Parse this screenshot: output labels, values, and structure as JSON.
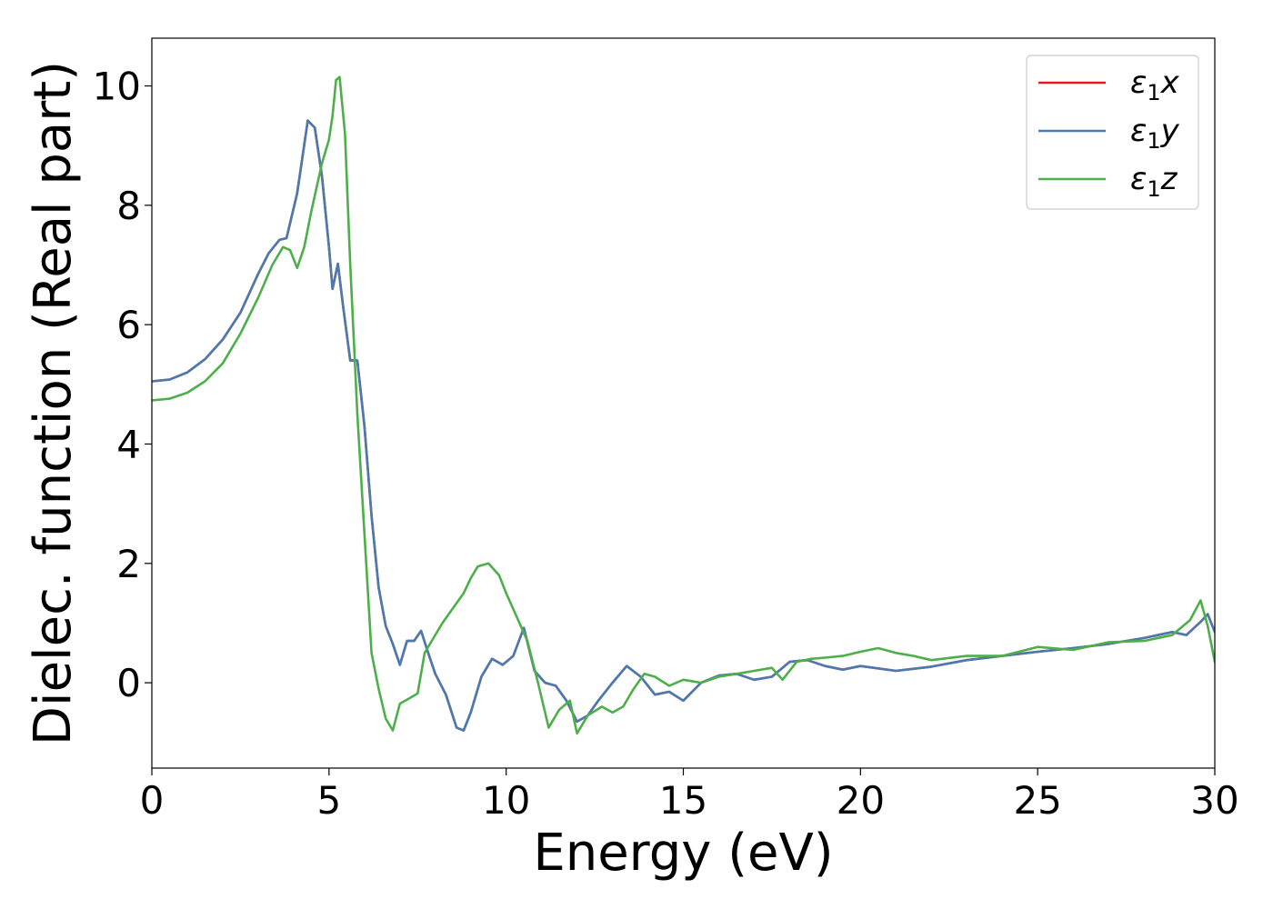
{
  "chart_data": {
    "type": "line",
    "xlabel": "Energy (eV)",
    "ylabel": "Dielec. function (Real part)",
    "xlim": [
      0,
      30
    ],
    "ylim": [
      -1.43,
      10.8
    ],
    "xticks": [
      "0",
      "5",
      "10",
      "15",
      "20",
      "25",
      "30"
    ],
    "yticks": [
      "0",
      "2",
      "4",
      "6",
      "8",
      "10"
    ],
    "grid": false,
    "legend_position": "top-right",
    "series": [
      {
        "name": "ε₁x",
        "legend_main": "ε",
        "legend_sub": "1",
        "legend_suffix": "x",
        "color": "#e41a1c",
        "x": [
          0,
          0.5,
          1,
          1.5,
          2,
          2.5,
          3,
          3.3,
          3.6,
          3.8,
          4.1,
          4.4,
          4.6,
          4.8,
          5.0,
          5.1,
          5.25,
          5.4,
          5.6,
          5.8,
          6.0,
          6.2,
          6.4,
          6.6,
          6.8,
          7.0,
          7.2,
          7.4,
          7.6,
          7.8,
          8.0,
          8.3,
          8.6,
          8.8,
          9.0,
          9.3,
          9.6,
          9.9,
          10.2,
          10.5,
          10.8,
          11.1,
          11.4,
          11.7,
          12.0,
          12.3,
          12.6,
          13.0,
          13.4,
          13.8,
          14.2,
          14.6,
          15.0,
          15.5,
          16.0,
          16.5,
          17.0,
          17.5,
          18.0,
          18.5,
          19.0,
          19.5,
          20.0,
          21.0,
          22.0,
          23.0,
          24.0,
          25.0,
          26.0,
          27.0,
          28.0,
          28.8,
          29.2,
          29.6,
          29.8,
          30.0
        ],
        "y": [
          5.05,
          5.08,
          5.2,
          5.42,
          5.75,
          6.2,
          6.85,
          7.2,
          7.42,
          7.45,
          8.2,
          9.42,
          9.3,
          8.5,
          7.3,
          6.6,
          7.02,
          6.3,
          5.4,
          5.4,
          4.3,
          2.8,
          1.6,
          0.95,
          0.65,
          0.3,
          0.7,
          0.7,
          0.87,
          0.5,
          0.15,
          -0.2,
          -0.75,
          -0.8,
          -0.5,
          0.1,
          0.4,
          0.3,
          0.45,
          0.92,
          0.2,
          0.0,
          -0.05,
          -0.3,
          -0.65,
          -0.55,
          -0.3,
          0.0,
          0.28,
          0.1,
          -0.2,
          -0.15,
          -0.3,
          0.0,
          0.12,
          0.15,
          0.05,
          0.1,
          0.35,
          0.38,
          0.28,
          0.22,
          0.28,
          0.2,
          0.27,
          0.38,
          0.45,
          0.52,
          0.58,
          0.65,
          0.75,
          0.85,
          0.8,
          1.02,
          1.15,
          0.85
        ]
      },
      {
        "name": "ε₁y",
        "legend_main": "ε",
        "legend_sub": "1",
        "legend_suffix": "y",
        "color": "#4a7bb0",
        "x": [
          0,
          0.5,
          1,
          1.5,
          2,
          2.5,
          3,
          3.3,
          3.6,
          3.8,
          4.1,
          4.4,
          4.6,
          4.8,
          5.0,
          5.1,
          5.25,
          5.4,
          5.6,
          5.8,
          6.0,
          6.2,
          6.4,
          6.6,
          6.8,
          7.0,
          7.2,
          7.4,
          7.6,
          7.8,
          8.0,
          8.3,
          8.6,
          8.8,
          9.0,
          9.3,
          9.6,
          9.9,
          10.2,
          10.5,
          10.8,
          11.1,
          11.4,
          11.7,
          12.0,
          12.3,
          12.6,
          13.0,
          13.4,
          13.8,
          14.2,
          14.6,
          15.0,
          15.5,
          16.0,
          16.5,
          17.0,
          17.5,
          18.0,
          18.5,
          19.0,
          19.5,
          20.0,
          21.0,
          22.0,
          23.0,
          24.0,
          25.0,
          26.0,
          27.0,
          28.0,
          28.8,
          29.2,
          29.6,
          29.8,
          30.0
        ],
        "y": [
          5.05,
          5.08,
          5.2,
          5.42,
          5.75,
          6.2,
          6.85,
          7.2,
          7.42,
          7.45,
          8.2,
          9.42,
          9.3,
          8.5,
          7.3,
          6.6,
          7.02,
          6.3,
          5.4,
          5.4,
          4.3,
          2.8,
          1.6,
          0.95,
          0.65,
          0.3,
          0.7,
          0.7,
          0.87,
          0.5,
          0.15,
          -0.2,
          -0.75,
          -0.8,
          -0.5,
          0.1,
          0.4,
          0.3,
          0.45,
          0.92,
          0.2,
          0.0,
          -0.05,
          -0.3,
          -0.65,
          -0.55,
          -0.3,
          0.0,
          0.28,
          0.1,
          -0.2,
          -0.15,
          -0.3,
          0.0,
          0.12,
          0.15,
          0.05,
          0.1,
          0.35,
          0.38,
          0.28,
          0.22,
          0.28,
          0.2,
          0.27,
          0.38,
          0.45,
          0.52,
          0.58,
          0.65,
          0.75,
          0.85,
          0.8,
          1.02,
          1.15,
          0.85
        ]
      },
      {
        "name": "ε₁z",
        "legend_main": "ε",
        "legend_sub": "1",
        "legend_suffix": "z",
        "color": "#4daf4a",
        "x": [
          0,
          0.5,
          1,
          1.5,
          2,
          2.5,
          3,
          3.4,
          3.7,
          3.9,
          4.1,
          4.3,
          4.5,
          4.8,
          5.0,
          5.1,
          5.2,
          5.3,
          5.45,
          5.6,
          5.8,
          6.0,
          6.2,
          6.4,
          6.6,
          6.8,
          7.0,
          7.3,
          7.5,
          7.7,
          7.9,
          8.2,
          8.5,
          8.8,
          9.0,
          9.2,
          9.5,
          9.8,
          10.0,
          10.3,
          10.6,
          10.9,
          11.2,
          11.5,
          11.8,
          12.0,
          12.3,
          12.7,
          13.0,
          13.3,
          13.6,
          13.9,
          14.2,
          14.6,
          15.0,
          15.5,
          16.0,
          16.5,
          17.0,
          17.5,
          17.8,
          18.2,
          18.6,
          19.0,
          19.5,
          20.0,
          20.5,
          21.0,
          21.5,
          22.0,
          23.0,
          24.0,
          25.0,
          26.0,
          27.0,
          28.0,
          28.8,
          29.3,
          29.6,
          29.8,
          30.0
        ],
        "y": [
          4.73,
          4.76,
          4.86,
          5.05,
          5.35,
          5.85,
          6.45,
          7.0,
          7.3,
          7.25,
          6.95,
          7.3,
          7.9,
          8.7,
          9.1,
          9.5,
          10.1,
          10.15,
          9.2,
          7.0,
          4.5,
          2.5,
          0.5,
          -0.1,
          -0.6,
          -0.8,
          -0.35,
          -0.25,
          -0.18,
          0.5,
          0.7,
          1.0,
          1.25,
          1.5,
          1.75,
          1.95,
          2.0,
          1.8,
          1.5,
          1.1,
          0.7,
          0.0,
          -0.75,
          -0.45,
          -0.3,
          -0.85,
          -0.55,
          -0.4,
          -0.5,
          -0.4,
          -0.1,
          0.15,
          0.1,
          -0.05,
          0.05,
          0.0,
          0.1,
          0.15,
          0.2,
          0.25,
          0.05,
          0.35,
          0.4,
          0.42,
          0.45,
          0.52,
          0.58,
          0.5,
          0.45,
          0.38,
          0.45,
          0.45,
          0.6,
          0.55,
          0.68,
          0.7,
          0.8,
          1.05,
          1.38,
          0.95,
          0.35
        ]
      }
    ]
  }
}
